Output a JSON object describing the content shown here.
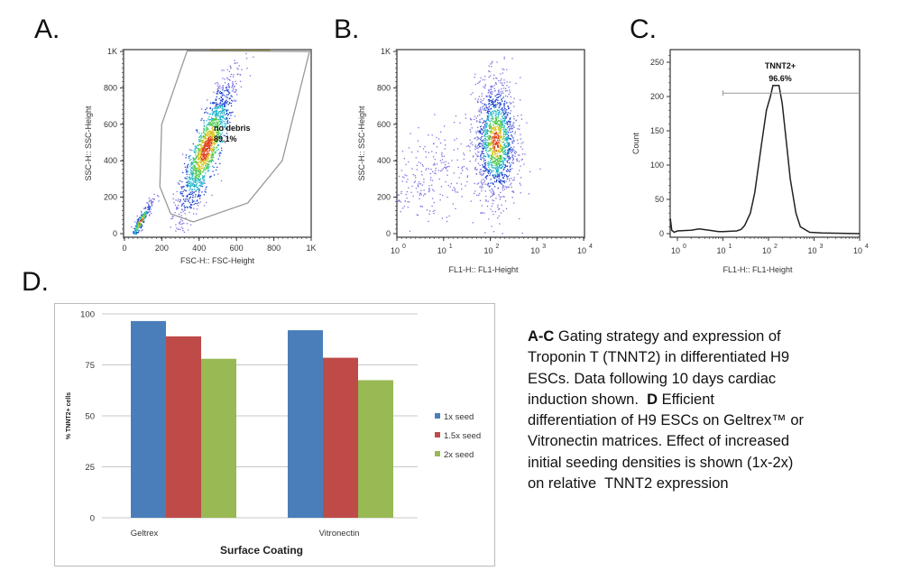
{
  "panels": {
    "a": "A.",
    "b": "B.",
    "c": "C.",
    "d": "D."
  },
  "caption": {
    "lines": [
      {
        "bold": "A-C",
        "text": " Gating strategy and expression of"
      },
      {
        "bold": "",
        "text": "Troponin T (TNNT2) in differentiated H9"
      },
      {
        "bold": "",
        "text": "ESCs.  Data following 10 days cardiac"
      },
      {
        "bold": "",
        "text": "induction shown.  "
      },
      {
        "bold": "",
        "text": "differentiation of H9 ESCs on Geltrex™ or"
      },
      {
        "bold": "",
        "text": "Vitronectin matrices.  Effect of increased"
      },
      {
        "bold": "",
        "text": "initial seeding densities is shown (1x-2x)"
      },
      {
        "bold": "",
        "text": "on relative  TNNT2 expression"
      }
    ],
    "line4_bold": "D",
    "line4_rest": " Efficient"
  },
  "chart_data": [
    {
      "panel": "A",
      "type": "scatter",
      "xlabel": "FSC-H:: FSC-Height",
      "ylabel": "SSC-H:: SSC-Height",
      "xlim": [
        0,
        1024
      ],
      "ylim": [
        0,
        1024
      ],
      "xticks": [
        "0",
        "200",
        "400",
        "600",
        "800",
        "1K"
      ],
      "yticks": [
        "0",
        "200",
        "400",
        "600",
        "800",
        "1K"
      ],
      "gate": {
        "name": "no debris",
        "percent": "89.1%",
        "polygon": [
          [
            347,
            1023
          ],
          [
            208,
            611
          ],
          [
            198,
            263
          ],
          [
            257,
            111
          ],
          [
            381,
            66
          ],
          [
            678,
            172
          ],
          [
            866,
            409
          ],
          [
            1015,
            1020
          ]
        ]
      },
      "colormap": "density (blue-cyan-green-yellow-red)"
    },
    {
      "panel": "B",
      "type": "scatter",
      "xscale": "log",
      "xlabel": "FL1-H:: FL1-Height",
      "ylabel": "SSC-H:: SSC-Height",
      "xlim": [
        1,
        10000
      ],
      "ylim": [
        0,
        1024
      ],
      "xticks": [
        "10^0",
        "10^1",
        "10^2",
        "10^3",
        "10^4"
      ],
      "yticks": [
        "0",
        "200",
        "400",
        "600",
        "800",
        "1K"
      ]
    },
    {
      "panel": "C",
      "type": "line",
      "xscale": "log",
      "xlabel": "FL1-H:: FL1-Height",
      "ylabel": "Count",
      "xlim": [
        0.7,
        10000
      ],
      "ylim": [
        0,
        270
      ],
      "xticks": [
        "10^0",
        "10^1",
        "10^2",
        "10^3",
        "10^4"
      ],
      "yticks": [
        "0",
        "50",
        "100",
        "150",
        "200",
        "250"
      ],
      "x": [
        0.7,
        0.75,
        0.85,
        1,
        2,
        3,
        5,
        8,
        10,
        20,
        25,
        30,
        40,
        50,
        70,
        90,
        110,
        125,
        170,
        200,
        250,
        300,
        400,
        500,
        800,
        1500,
        10000
      ],
      "y": [
        22,
        5,
        2,
        4,
        5,
        7,
        5,
        3,
        3,
        4,
        6,
        12,
        30,
        60,
        130,
        180,
        200,
        225,
        225,
        190,
        130,
        80,
        30,
        10,
        2,
        1,
        0
      ],
      "gate": {
        "name": "TNNT2+",
        "percent": "96.6%",
        "range": [
          10,
          10000
        ],
        "level": 205
      }
    },
    {
      "panel": "D",
      "type": "bar",
      "categories": [
        "Geltrex",
        "Vitronectin"
      ],
      "series": [
        {
          "name": "1x seed",
          "values": [
            96.5,
            92
          ],
          "color": "#4a7ebb"
        },
        {
          "name": "1.5x seed",
          "values": [
            89,
            78.5
          ],
          "color": "#be4b48"
        },
        {
          "name": "2x seed",
          "values": [
            78,
            67.5
          ],
          "color": "#98b954"
        }
      ],
      "xlabel": "Surface Coating",
      "ylabel": "% TNNT2+ cells",
      "ylim": [
        0,
        100
      ],
      "yticks": [
        "0",
        "25",
        "50",
        "75",
        "100"
      ],
      "grid": true,
      "legend": "right"
    }
  ]
}
